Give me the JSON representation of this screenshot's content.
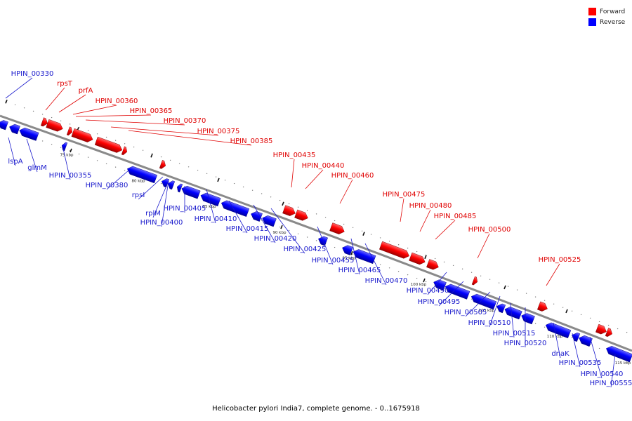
{
  "legend": {
    "forward_label": "Forward",
    "reverse_label": "Reverse",
    "forward_color": "#ff0000",
    "reverse_color": "#0000ff"
  },
  "caption": "Helicobacter pylori India7, complete genome. - 0..1675918",
  "scale_marks": [
    "75 kbp",
    "80 kbp",
    "85 kbp",
    "90 kbp",
    "95 kbp",
    "100 kbp",
    "105 kbp",
    "110 kbp",
    "115 kbp"
  ],
  "forward_genes": [
    "rpsT",
    "prfA",
    "HPIN_00360",
    "HPIN_00365",
    "HPIN_00370",
    "HPIN_00375",
    "HPIN_00385",
    "HPIN_00435",
    "HPIN_00440",
    "HPIN_00460",
    "HPIN_00475",
    "HPIN_00480",
    "HPIN_00485",
    "HPIN_00500",
    "HPIN_00525"
  ],
  "reverse_genes": [
    "HPIN_00330",
    "lspA",
    "glmM",
    "HPIN_00355",
    "HPIN_00380",
    "rpsI",
    "rplM",
    "HPIN_00400",
    "HPIN_00405",
    "HPIN_00410",
    "HPIN_00415",
    "HPIN_00420",
    "HPIN_00425",
    "HPIN_00455",
    "HPIN_00465",
    "HPIN_00470",
    "HPIN_00490",
    "HPIN_00495",
    "HPIN_00505",
    "HPIN_00510",
    "HPIN_00515",
    "HPIN_00520",
    "dnaK",
    "HPIN_00535",
    "HPIN_00540",
    "HPIN_00555"
  ]
}
